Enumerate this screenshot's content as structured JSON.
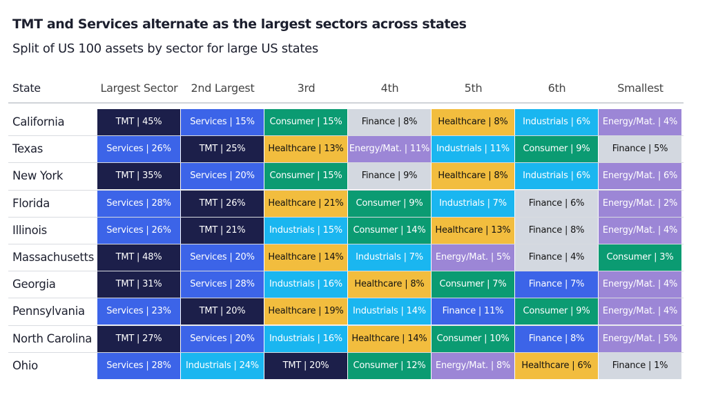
{
  "header": {
    "title": "TMT and Services alternate as the largest sectors across states",
    "subtitle": "Split of US 100 assets by sector for large US states"
  },
  "table": {
    "columns": [
      "State",
      "Largest Sector",
      "2nd Largest",
      "3rd",
      "4th",
      "5th",
      "6th",
      "Smallest"
    ],
    "rows": [
      {
        "state": "California",
        "cells": [
          {
            "text": "TMT | 45%",
            "color": "#1c1f4a"
          },
          {
            "text": "Services | 15%",
            "color": "#3c64e8"
          },
          {
            "text": "Consumer | 15%",
            "color": "#0b9b72"
          },
          {
            "text": "Finance | 8%",
            "color": "#d3d8e0"
          },
          {
            "text": "Healthcare | 8%",
            "color": "#f2bd3e"
          },
          {
            "text": "Industrials | 6%",
            "color": "#1ab6f0"
          },
          {
            "text": "Energy/Mat. | 4%",
            "color": "#9c86d6"
          }
        ]
      },
      {
        "state": "Texas",
        "cells": [
          {
            "text": "Services | 26%",
            "color": "#3c64e8"
          },
          {
            "text": "TMT | 25%",
            "color": "#1c1f4a"
          },
          {
            "text": "Healthcare | 13%",
            "color": "#f2bd3e"
          },
          {
            "text": "Energy/Mat. | 11%",
            "color": "#9c86d6"
          },
          {
            "text": "Industrials | 11%",
            "color": "#1ab6f0"
          },
          {
            "text": "Consumer | 9%",
            "color": "#0b9b72"
          },
          {
            "text": "Finance | 5%",
            "color": "#d3d8e0"
          }
        ]
      },
      {
        "state": "New York",
        "cells": [
          {
            "text": "TMT | 35%",
            "color": "#1c1f4a"
          },
          {
            "text": "Services | 20%",
            "color": "#3c64e8"
          },
          {
            "text": "Consumer | 15%",
            "color": "#0b9b72"
          },
          {
            "text": "Finance | 9%",
            "color": "#d3d8e0"
          },
          {
            "text": "Healthcare | 8%",
            "color": "#f2bd3e"
          },
          {
            "text": "Industrials | 6%",
            "color": "#1ab6f0"
          },
          {
            "text": "Energy/Mat. | 6%",
            "color": "#9c86d6"
          }
        ]
      },
      {
        "state": "Florida",
        "cells": [
          {
            "text": "Services | 28%",
            "color": "#3c64e8"
          },
          {
            "text": "TMT | 26%",
            "color": "#1c1f4a"
          },
          {
            "text": "Healthcare | 21%",
            "color": "#f2bd3e"
          },
          {
            "text": "Consumer | 9%",
            "color": "#0b9b72"
          },
          {
            "text": "Industrials | 7%",
            "color": "#1ab6f0"
          },
          {
            "text": "Finance | 6%",
            "color": "#d3d8e0"
          },
          {
            "text": "Energy/Mat. | 2%",
            "color": "#9c86d6"
          }
        ]
      },
      {
        "state": "Illinois",
        "cells": [
          {
            "text": "Services | 26%",
            "color": "#3c64e8"
          },
          {
            "text": "TMT | 21%",
            "color": "#1c1f4a"
          },
          {
            "text": "Industrials | 15%",
            "color": "#1ab6f0"
          },
          {
            "text": "Consumer | 14%",
            "color": "#0b9b72"
          },
          {
            "text": "Healthcare | 13%",
            "color": "#f2bd3e"
          },
          {
            "text": "Finance | 8%",
            "color": "#d3d8e0"
          },
          {
            "text": "Energy/Mat. | 4%",
            "color": "#9c86d6"
          }
        ]
      },
      {
        "state": "Massachusetts",
        "cells": [
          {
            "text": "TMT | 48%",
            "color": "#1c1f4a"
          },
          {
            "text": "Services | 20%",
            "color": "#3c64e8"
          },
          {
            "text": "Healthcare | 14%",
            "color": "#f2bd3e"
          },
          {
            "text": "Industrials | 7%",
            "color": "#1ab6f0"
          },
          {
            "text": "Energy/Mat. | 5%",
            "color": "#9c86d6"
          },
          {
            "text": "Finance | 4%",
            "color": "#d3d8e0"
          },
          {
            "text": "Consumer | 3%",
            "color": "#0b9b72"
          }
        ]
      },
      {
        "state": "Georgia",
        "cells": [
          {
            "text": "TMT | 31%",
            "color": "#1c1f4a"
          },
          {
            "text": "Services | 28%",
            "color": "#3c64e8"
          },
          {
            "text": "Industrials | 16%",
            "color": "#1ab6f0"
          },
          {
            "text": "Healthcare | 8%",
            "color": "#f2bd3e"
          },
          {
            "text": "Consumer | 7%",
            "color": "#0b9b72"
          },
          {
            "text": "Finance | 7%",
            "color": "#3c64e8"
          },
          {
            "text": "Energy/Mat. | 4%",
            "color": "#9c86d6"
          }
        ]
      },
      {
        "state": "Pennsylvania",
        "cells": [
          {
            "text": "Services | 23%",
            "color": "#3c64e8"
          },
          {
            "text": "TMT | 20%",
            "color": "#1c1f4a"
          },
          {
            "text": "Healthcare | 19%",
            "color": "#f2bd3e"
          },
          {
            "text": "Industrials | 14%",
            "color": "#1ab6f0"
          },
          {
            "text": "Finance | 11%",
            "color": "#3c64e8"
          },
          {
            "text": "Consumer | 9%",
            "color": "#0b9b72"
          },
          {
            "text": "Energy/Mat. | 4%",
            "color": "#9c86d6"
          }
        ]
      },
      {
        "state": "North Carolina",
        "cells": [
          {
            "text": "TMT | 27%",
            "color": "#1c1f4a"
          },
          {
            "text": "Services | 20%",
            "color": "#3c64e8"
          },
          {
            "text": "Industrials | 16%",
            "color": "#1ab6f0"
          },
          {
            "text": "Healthcare | 14%",
            "color": "#f2bd3e"
          },
          {
            "text": "Consumer | 10%",
            "color": "#0b9b72"
          },
          {
            "text": "Finance | 8%",
            "color": "#3c64e8"
          },
          {
            "text": "Energy/Mat. | 5%",
            "color": "#9c86d6"
          }
        ]
      },
      {
        "state": "Ohio",
        "cells": [
          {
            "text": "Services | 28%",
            "color": "#3c64e8"
          },
          {
            "text": "Industrials | 24%",
            "color": "#1ab6f0"
          },
          {
            "text": "TMT | 20%",
            "color": "#1c1f4a"
          },
          {
            "text": "Consumer | 12%",
            "color": "#0b9b72"
          },
          {
            "text": "Energy/Mat. | 8%",
            "color": "#9c86d6"
          },
          {
            "text": "Healthcare | 6%",
            "color": "#f2bd3e"
          },
          {
            "text": "Finance | 1%",
            "color": "#d3d8e0"
          }
        ]
      }
    ]
  }
}
